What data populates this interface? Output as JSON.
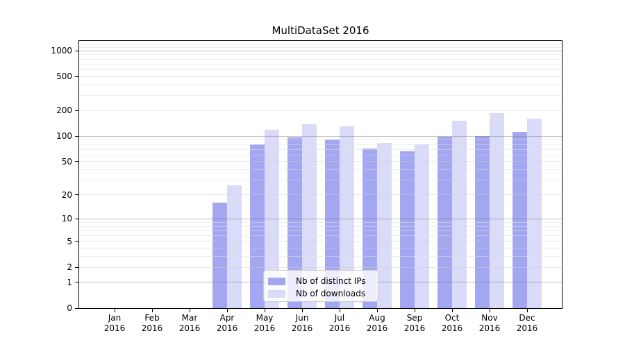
{
  "chart_data": {
    "type": "bar",
    "title": "MultiDataSet 2016",
    "categories": [
      "Jan 2016",
      "Feb 2016",
      "Mar 2016",
      "Apr 2016",
      "May 2016",
      "Jun 2016",
      "Jul 2016",
      "Aug 2016",
      "Sep 2016",
      "Oct 2016",
      "Nov 2016",
      "Dec 2016"
    ],
    "category_months": [
      "Jan",
      "Feb",
      "Mar",
      "Apr",
      "May",
      "Jun",
      "Jul",
      "Aug",
      "Sep",
      "Oct",
      "Nov",
      "Dec"
    ],
    "category_year": "2016",
    "series": [
      {
        "name": "Nb of distinct IPs",
        "color": "#a3a6f1",
        "values": [
          0,
          0,
          0,
          16,
          80,
          97,
          91,
          71,
          67,
          98,
          101,
          112
        ]
      },
      {
        "name": "Nb of downloads",
        "color": "#d9dbf9",
        "values": [
          0,
          0,
          0,
          26,
          118,
          138,
          130,
          84,
          80,
          152,
          188,
          162
        ]
      }
    ],
    "xlabel": "",
    "ylabel": "",
    "yscale": "log1p",
    "ylim": [
      0,
      1300
    ],
    "yticks": [
      0,
      1,
      2,
      5,
      10,
      20,
      50,
      100,
      200,
      500,
      1000
    ],
    "ytick_labels": [
      "0",
      "1",
      "2",
      "5",
      "10",
      "20",
      "50",
      "100",
      "200",
      "500",
      "1000"
    ],
    "grid": true,
    "gridlines": {
      "major": [
        1,
        10,
        100,
        1000
      ],
      "mid": [
        2,
        5,
        20,
        50,
        200,
        500
      ],
      "minor": [
        3,
        4,
        6,
        7,
        8,
        9,
        30,
        40,
        60,
        70,
        80,
        90,
        300,
        400,
        600,
        700,
        800,
        900,
        1100,
        1200
      ]
    },
    "legend_position": "lower center"
  },
  "legend": {
    "items": [
      {
        "label": "Nb of distinct IPs"
      },
      {
        "label": "Nb of downloads"
      }
    ]
  }
}
